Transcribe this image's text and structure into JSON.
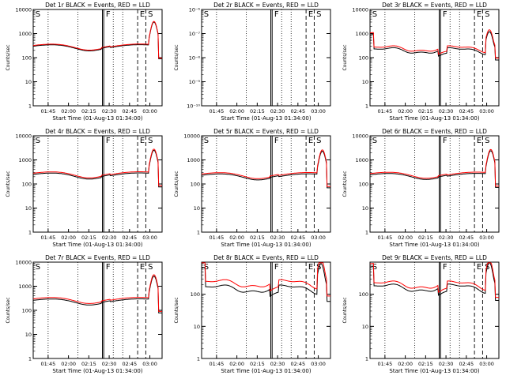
{
  "chart_data": [
    {
      "type": "line",
      "title": "Det 1r BLACK = Events, RED = LLD",
      "xlabel": "Start Time (01-Aug-13 01:34:00)",
      "ylabel": "Counts/sec",
      "yscale": "log",
      "ylim": [
        1,
        10000
      ],
      "yticks": [
        "1",
        "10",
        "100",
        "1000",
        "10000"
      ],
      "xticks": [
        "01:45",
        "02:00",
        "02:15",
        "02:30",
        "02:45",
        "03:00"
      ],
      "xlim_min": [
        0,
        95
      ],
      "dotted_x": [
        11,
        33,
        59,
        66
      ],
      "solid_x": [
        51,
        52
      ],
      "dashed_x": [
        77,
        83
      ],
      "letters": [
        "S",
        "F",
        "E",
        "S"
      ],
      "series": [
        {
          "color": "#000000",
          "profile": "a",
          "base": 300
        },
        {
          "color": "#ff0000",
          "profile": "a",
          "base": 320
        }
      ]
    },
    {
      "type": "line",
      "title": "Det 2r BLACK = Events, RED = LLD",
      "xlabel": "Start Time (01-Aug-13 01:34:00)",
      "ylabel": "Counts/sec",
      "yscale": "log",
      "ylim": [
        1e-10,
        1e-06
      ],
      "yticks": [
        "10⁻¹⁰",
        "10⁻⁹",
        "10⁻⁸",
        "10⁻⁷",
        "10⁻⁶"
      ],
      "xticks": [
        "01:45",
        "02:00",
        "02:15",
        "02:30",
        "02:45",
        "03:00"
      ],
      "xlim_min": [
        0,
        95
      ],
      "dotted_x": [
        11,
        33,
        59,
        66
      ],
      "solid_x": [
        51,
        52
      ],
      "dashed_x": [
        77,
        83
      ],
      "letters": [
        "S",
        "F",
        "E",
        "S"
      ],
      "series": []
    },
    {
      "type": "line",
      "title": "Det 3r BLACK = Events, RED = LLD",
      "xlabel": "Start Time (01-Aug-13 01:34:00)",
      "ylabel": "Counts/sec",
      "yscale": "log",
      "ylim": [
        1,
        10000
      ],
      "yticks": [
        "1",
        "10",
        "100",
        "1000",
        "10000"
      ],
      "xticks": [
        "01:45",
        "02:00",
        "02:15",
        "02:30",
        "02:45",
        "03:00"
      ],
      "xlim_min": [
        0,
        95
      ],
      "dotted_x": [
        11,
        33,
        59,
        66
      ],
      "solid_x": [
        51,
        52
      ],
      "dashed_x": [
        77,
        83
      ],
      "letters": [
        "S",
        "F",
        "E",
        "S"
      ],
      "series": [
        {
          "color": "#000000",
          "profile": "b",
          "base": 200
        },
        {
          "color": "#ff0000",
          "profile": "b",
          "base": 240
        }
      ]
    },
    {
      "type": "line",
      "title": "Det 4r BLACK = Events, RED = LLD",
      "xlabel": "Start Time (01-Aug-13 01:34:00)",
      "ylabel": "Counts/sec",
      "yscale": "log",
      "ylim": [
        1,
        10000
      ],
      "yticks": [
        "1",
        "10",
        "100",
        "1000",
        "10000"
      ],
      "xticks": [
        "01:45",
        "02:00",
        "02:15",
        "02:30",
        "02:45",
        "03:00"
      ],
      "xlim_min": [
        0,
        95
      ],
      "dotted_x": [
        11,
        33,
        59,
        66
      ],
      "solid_x": [
        51,
        52
      ],
      "dashed_x": [
        77,
        83
      ],
      "letters": [
        "S",
        "F",
        "E",
        "S"
      ],
      "series": [
        {
          "color": "#000000",
          "profile": "a",
          "base": 250
        },
        {
          "color": "#ff0000",
          "profile": "a",
          "base": 280
        }
      ]
    },
    {
      "type": "line",
      "title": "Det 5r BLACK = Events, RED = LLD",
      "xlabel": "Start Time (01-Aug-13 01:34:00)",
      "ylabel": "Counts/sec",
      "yscale": "log",
      "ylim": [
        1,
        10000
      ],
      "yticks": [
        "1",
        "10",
        "100",
        "1000",
        "10000"
      ],
      "xticks": [
        "01:45",
        "02:00",
        "02:15",
        "02:30",
        "02:45",
        "03:00"
      ],
      "xlim_min": [
        0,
        95
      ],
      "dotted_x": [
        11,
        33,
        59,
        66
      ],
      "solid_x": [
        51,
        52
      ],
      "dashed_x": [
        77,
        83
      ],
      "letters": [
        "S",
        "F",
        "E",
        "S"
      ],
      "series": [
        {
          "color": "#000000",
          "profile": "a",
          "base": 230
        },
        {
          "color": "#ff0000",
          "profile": "a",
          "base": 260
        }
      ]
    },
    {
      "type": "line",
      "title": "Det 6r BLACK = Events, RED = LLD",
      "xlabel": "Start Time (01-Aug-13 01:34:00)",
      "ylabel": "Counts/sec",
      "yscale": "log",
      "ylim": [
        1,
        10000
      ],
      "yticks": [
        "1",
        "10",
        "100",
        "1000",
        "10000"
      ],
      "xticks": [
        "01:45",
        "02:00",
        "02:15",
        "02:30",
        "02:45",
        "03:00"
      ],
      "xlim_min": [
        0,
        95
      ],
      "dotted_x": [
        11,
        33,
        59,
        66
      ],
      "solid_x": [
        51,
        52
      ],
      "dashed_x": [
        77,
        83
      ],
      "letters": [
        "S",
        "F",
        "E",
        "S"
      ],
      "series": [
        {
          "color": "#000000",
          "profile": "a",
          "base": 240
        },
        {
          "color": "#ff0000",
          "profile": "a",
          "base": 270
        }
      ]
    },
    {
      "type": "line",
      "title": "Det 7r BLACK = Events, RED = LLD",
      "xlabel": "Start Time (01-Aug-13 01:34:00)",
      "ylabel": "Counts/sec",
      "yscale": "log",
      "ylim": [
        1,
        10000
      ],
      "yticks": [
        "1",
        "10",
        "100",
        "1000",
        "10000"
      ],
      "xticks": [
        "01:45",
        "02:00",
        "02:15",
        "02:30",
        "02:45",
        "03:00"
      ],
      "xlim_min": [
        0,
        95
      ],
      "dotted_x": [
        11,
        33,
        59,
        66
      ],
      "solid_x": [
        51,
        52
      ],
      "dashed_x": [
        77,
        83
      ],
      "letters": [
        "S",
        "F",
        "E",
        "S"
      ],
      "series": [
        {
          "color": "#000000",
          "profile": "a",
          "base": 260
        },
        {
          "color": "#ff0000",
          "profile": "a",
          "base": 300
        }
      ]
    },
    {
      "type": "line",
      "title": "Det 8r BLACK = Events, RED = LLD",
      "xlabel": "Start Time (01-Aug-13 01:34:00)",
      "ylabel": "Counts/sec",
      "yscale": "log",
      "ylim": [
        1,
        1000
      ],
      "yticks": [
        "1",
        "10",
        "100"
      ],
      "xticks": [
        "01:45",
        "02:00",
        "02:15",
        "02:30",
        "02:45",
        "03:00"
      ],
      "xlim_min": [
        0,
        95
      ],
      "dotted_x": [
        11,
        33,
        59,
        66
      ],
      "solid_x": [
        51,
        52
      ],
      "dashed_x": [
        77,
        83
      ],
      "letters": [
        "S",
        "F",
        "E",
        "S"
      ],
      "series": [
        {
          "color": "#000000",
          "profile": "b",
          "base": 150
        },
        {
          "color": "#ff0000",
          "profile": "b",
          "base": 220
        }
      ]
    },
    {
      "type": "line",
      "title": "Det 9r BLACK = Events, RED = LLD",
      "xlabel": "Start Time (01-Aug-13 01:34:00)",
      "ylabel": "Counts/sec",
      "yscale": "log",
      "ylim": [
        1,
        1000
      ],
      "yticks": [
        "1",
        "10",
        "100"
      ],
      "xticks": [
        "01:45",
        "02:00",
        "02:15",
        "02:30",
        "02:45",
        "03:00"
      ],
      "xlim_min": [
        0,
        95
      ],
      "dotted_x": [
        11,
        33,
        59,
        66
      ],
      "solid_x": [
        51,
        52
      ],
      "dashed_x": [
        77,
        83
      ],
      "letters": [
        "S",
        "F",
        "E",
        "S"
      ],
      "series": [
        {
          "color": "#000000",
          "profile": "b",
          "base": 160
        },
        {
          "color": "#ff0000",
          "profile": "b",
          "base": 200
        }
      ]
    }
  ]
}
